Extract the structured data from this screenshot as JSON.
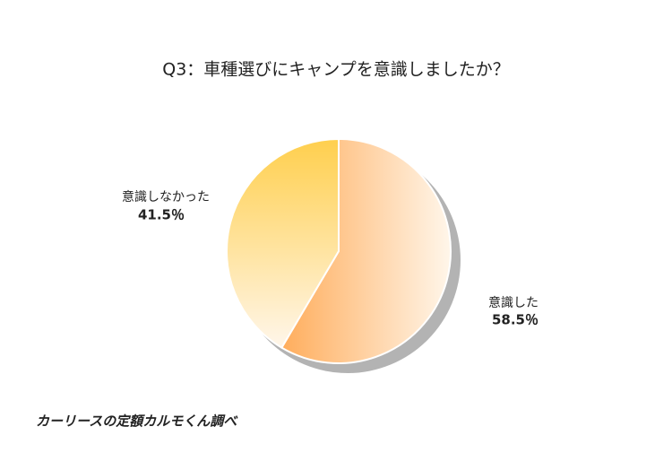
{
  "chart_data": {
    "type": "pie",
    "title": "Q3：車種選びにキャンプを意識しましたか？",
    "categories": [
      "意識した",
      "意識しなかった"
    ],
    "values": [
      58.5,
      41.5
    ],
    "value_labels": [
      "58.5％",
      "41.5％"
    ],
    "colors": [
      "#ffad5c",
      "#ffcf4d"
    ],
    "source": "カーリースの定額カルモくん調べ"
  }
}
